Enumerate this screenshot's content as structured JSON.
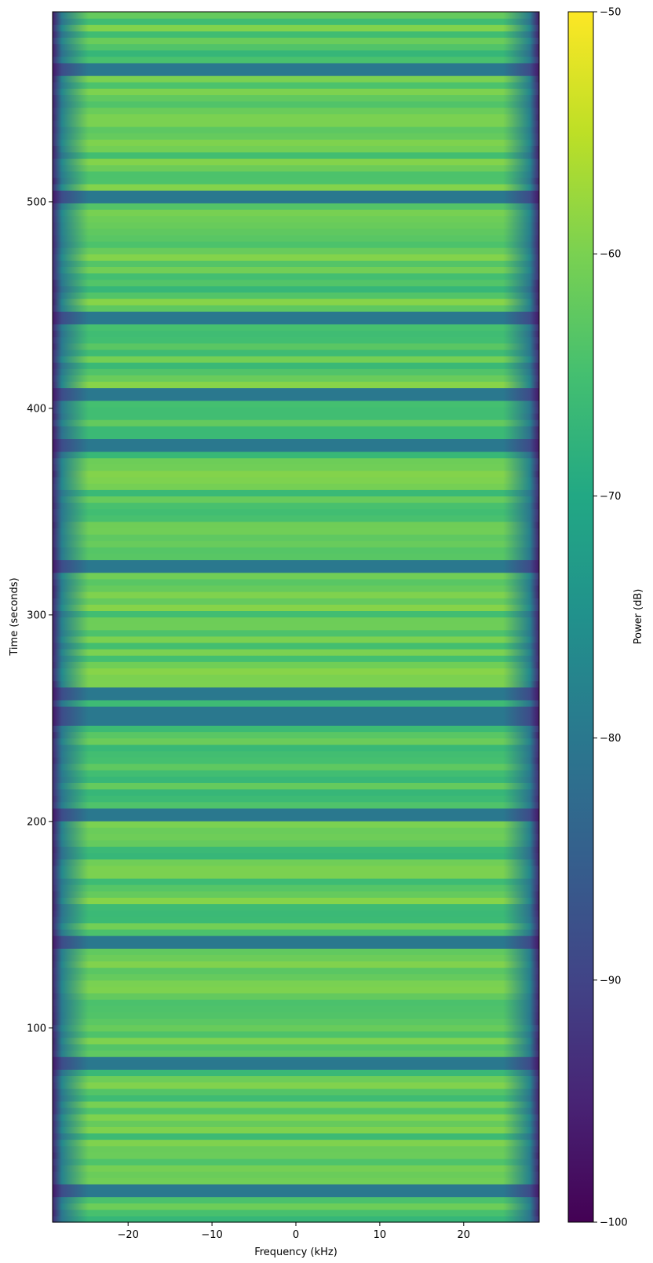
{
  "chart_data": {
    "type": "heatmap",
    "title": "",
    "xlabel": "Frequency (kHz)",
    "ylabel": "Time (seconds)",
    "xlim": [
      -29,
      29
    ],
    "ylim": [
      6,
      592
    ],
    "x_ticks": [
      -20,
      -10,
      0,
      10,
      20
    ],
    "y_ticks": [
      100,
      200,
      300,
      400,
      500
    ],
    "x_tick_labels": [
      "−20",
      "−10",
      "0",
      "10",
      "20"
    ],
    "y_tick_labels": [
      "100",
      "200",
      "300",
      "400",
      "500"
    ],
    "colormap": "viridis",
    "colorbar": {
      "label": "Power (dB)",
      "range": [
        -100,
        -50
      ],
      "ticks": [
        -100,
        -90,
        -80,
        -70,
        -60,
        -50
      ],
      "tick_labels": [
        "−100",
        "−90",
        "−80",
        "−70",
        "−60",
        "−50"
      ]
    },
    "signal_band_khz": [
      -27,
      27
    ],
    "typical_in_band_power_db": -63,
    "typical_noise_floor_db": -80,
    "edge_rolloff_power_db": -95,
    "gap_bands_seconds": [
      [
        18,
        24
      ],
      [
        80,
        86
      ],
      [
        140,
        146
      ],
      [
        200,
        205
      ],
      [
        246,
        255
      ],
      [
        260,
        266
      ],
      [
        320,
        326
      ],
      [
        380,
        386
      ],
      [
        403,
        411
      ],
      [
        440,
        446
      ],
      [
        500,
        506
      ],
      [
        560,
        566
      ]
    ]
  }
}
